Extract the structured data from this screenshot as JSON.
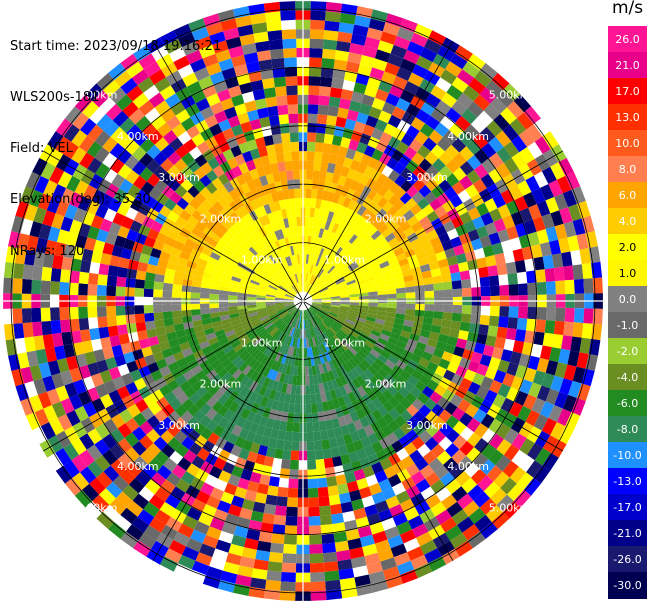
{
  "info": {
    "start_time": "Start time: 2023/09/18 19:16:21",
    "instrument": "WLS200s-181",
    "field": "Field: VEL",
    "elevation": "Elevation(deg): 35.30",
    "nrays": "NRays: 120"
  },
  "colorbar": {
    "unit": "m/s",
    "ticks": [
      "26.0",
      "21.0",
      "17.0",
      "13.0",
      "10.0",
      "8.0",
      "6.0",
      "4.0",
      "2.0",
      "1.0",
      "0.0",
      "-1.0",
      "-2.0",
      "-4.0",
      "-6.0",
      "-8.0",
      "-10.0",
      "-13.0",
      "-17.0",
      "-21.0",
      "-26.0",
      "-30.0"
    ],
    "colors": [
      "#ff1493",
      "#e8008a",
      "#ff0000",
      "#ff3000",
      "#ff5a1e",
      "#ff7f50",
      "#ffa500",
      "#ffcc00",
      "#ffff00",
      "#fff700",
      "#808080",
      "#696969",
      "#9acd32",
      "#6b8e23",
      "#228b22",
      "#2e8b57",
      "#1e90ff",
      "#0000ff",
      "#0000cd",
      "#00008b",
      "#191970",
      "#000050"
    ]
  },
  "chart_data": {
    "type": "heatmap",
    "title": "",
    "field": "VEL",
    "units": "m/s",
    "projection": "polar PPI",
    "nrays": 120,
    "range_rings_km": [
      1.0,
      2.0,
      3.0,
      4.0,
      5.0
    ],
    "ring_labels": [
      "1.00km",
      "2.00km",
      "3.00km",
      "4.00km",
      "5.00km"
    ],
    "color_scale": [
      -30.0,
      -26.0,
      -21.0,
      -17.0,
      -13.0,
      -10.0,
      -8.0,
      -6.0,
      -4.0,
      -2.0,
      -1.0,
      0.0,
      1.0,
      2.0,
      4.0,
      6.0,
      8.0,
      10.0,
      13.0,
      17.0,
      21.0,
      26.0
    ],
    "velocity_pattern": {
      "inner_north_ms": 2.5,
      "inner_south_ms": -4.0,
      "far_range": "noise"
    }
  }
}
